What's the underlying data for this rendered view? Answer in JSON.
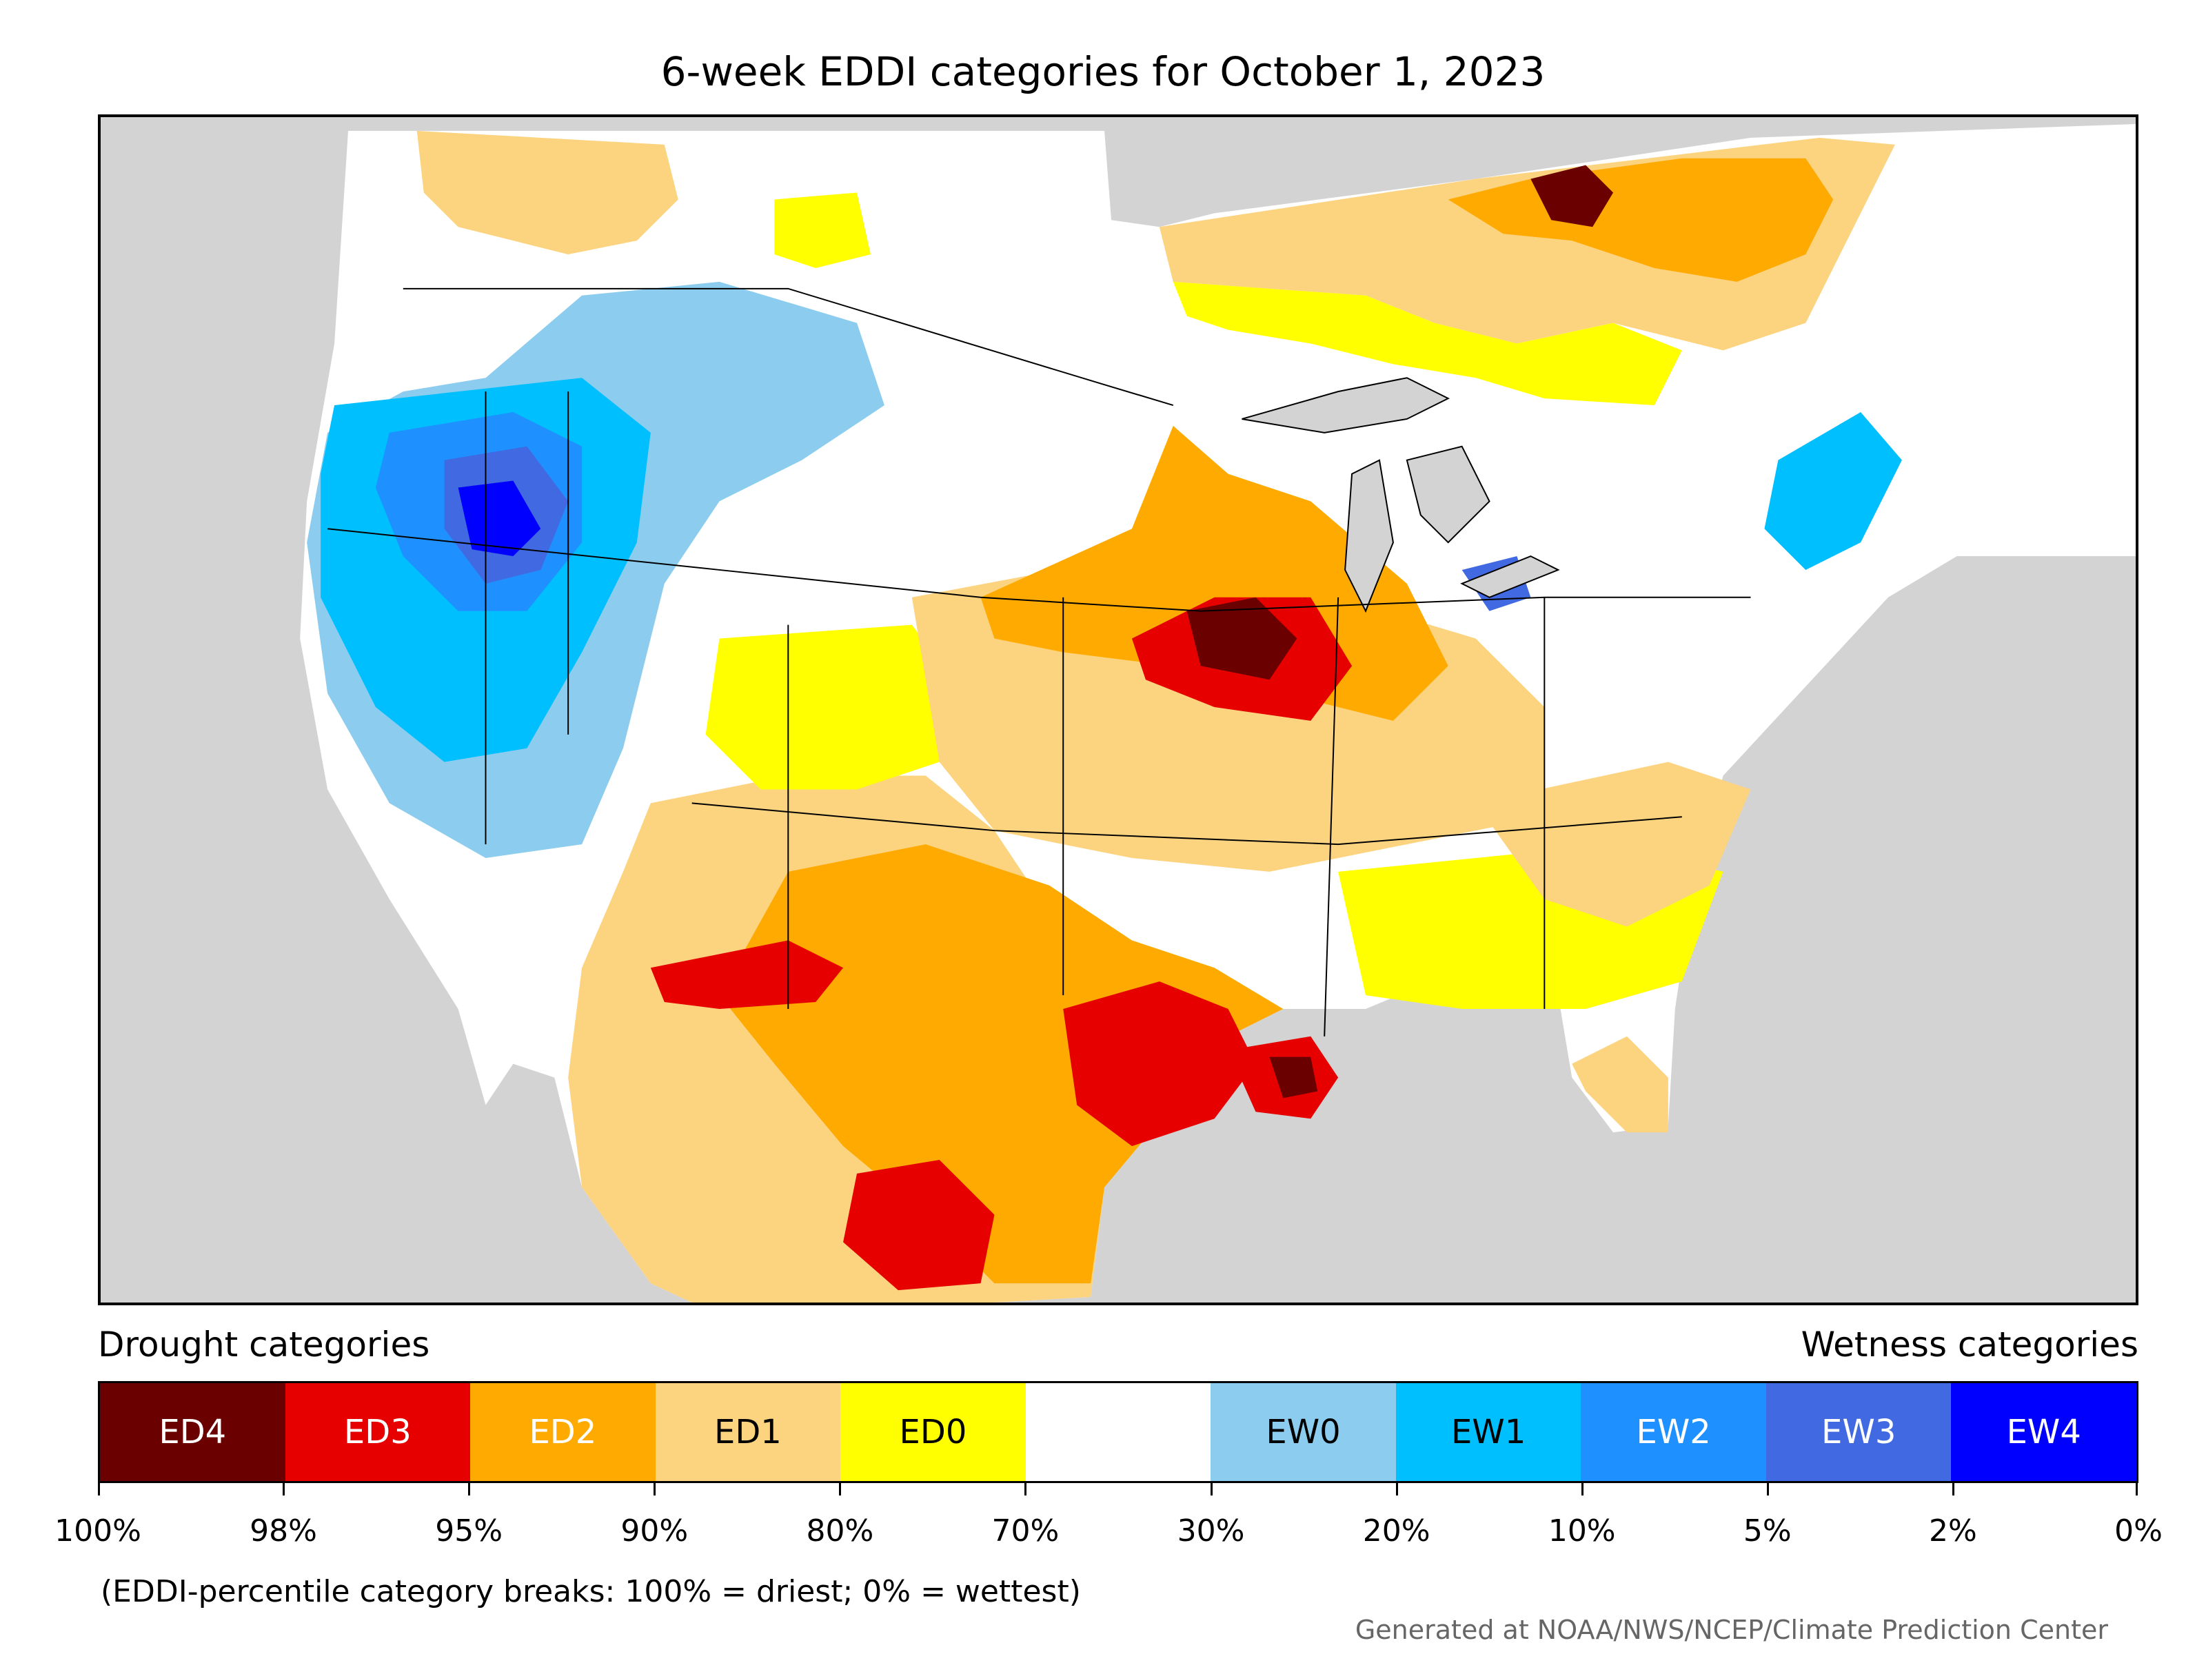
{
  "title": "6-week EDDI categories for October 1, 2023",
  "legend": {
    "drought_heading": "Drought categories",
    "wetness_heading": "Wetness categories",
    "categories": [
      {
        "label": "ED4",
        "color": "#6b0000",
        "text_color": "#ffffff"
      },
      {
        "label": "ED3",
        "color": "#e60000",
        "text_color": "#ffffff"
      },
      {
        "label": "ED2",
        "color": "#ffaa00",
        "text_color": "#ffffff"
      },
      {
        "label": "ED1",
        "color": "#fcd37f",
        "text_color": "#000000"
      },
      {
        "label": "ED0",
        "color": "#ffff00",
        "text_color": "#000000"
      },
      {
        "label": "",
        "color": "#ffffff",
        "text_color": "#000000"
      },
      {
        "label": "EW0",
        "color": "#8ccdef",
        "text_color": "#000000"
      },
      {
        "label": "EW1",
        "color": "#00bfff",
        "text_color": "#000000"
      },
      {
        "label": "EW2",
        "color": "#1e90ff",
        "text_color": "#ffffff"
      },
      {
        "label": "EW3",
        "color": "#4169e1",
        "text_color": "#ffffff"
      },
      {
        "label": "EW4",
        "color": "#0000ff",
        "text_color": "#ffffff"
      }
    ],
    "breaks": [
      "100%",
      "98%",
      "95%",
      "90%",
      "80%",
      "70%",
      "30%",
      "20%",
      "10%",
      "5%",
      "2%",
      "0%"
    ]
  },
  "footnote": "(EDDI-percentile category breaks: 100% = driest; 0% = wettest)",
  "credit": "Generated at NOAA/NWS/NCEP/Climate Prediction Center",
  "map_colors": {
    "background": "#d3d3d3",
    "land": "#ffffff",
    "water": "#d3d3d3",
    "border": "#000000"
  },
  "map_regions": [
    {
      "category": "ED1",
      "area": "canada-ontario-quebec"
    },
    {
      "category": "ED1",
      "area": "pacific-northwest"
    },
    {
      "category": "ED0",
      "area": "canadian-prairies"
    },
    {
      "category": "ED0",
      "area": "colorado-rockies"
    },
    {
      "category": "ED1",
      "area": "southwest-mexico"
    },
    {
      "category": "ED2",
      "area": "southern-plains"
    },
    {
      "category": "ED2",
      "area": "midwest"
    },
    {
      "category": "ED1",
      "area": "central-plains"
    },
    {
      "category": "ED1",
      "area": "ohio-valley"
    },
    {
      "category": "ED0",
      "area": "southeast"
    },
    {
      "category": "ED1",
      "area": "carolinas"
    },
    {
      "category": "ED1",
      "area": "florida"
    },
    {
      "category": "ED3",
      "area": "texas"
    },
    {
      "category": "ED3",
      "area": "iowa-minnesota"
    },
    {
      "category": "ED3",
      "area": "new-mexico-border"
    },
    {
      "category": "ED3",
      "area": "northern-mexico"
    },
    {
      "category": "ED3",
      "area": "louisiana"
    },
    {
      "category": "ED4",
      "area": "iowa"
    },
    {
      "category": "ED4",
      "area": "quebec"
    },
    {
      "category": "ED4",
      "area": "louisiana-coast"
    },
    {
      "category": "EW0",
      "area": "idaho-montana"
    },
    {
      "category": "EW1",
      "area": "oregon-nevada"
    },
    {
      "category": "EW2",
      "area": "nevada-core"
    },
    {
      "category": "EW3",
      "area": "nevada-center"
    },
    {
      "category": "EW4",
      "area": "nevada-utah"
    },
    {
      "category": "EW1",
      "area": "new-england"
    },
    {
      "category": "EW3",
      "area": "lake-erie"
    }
  ]
}
